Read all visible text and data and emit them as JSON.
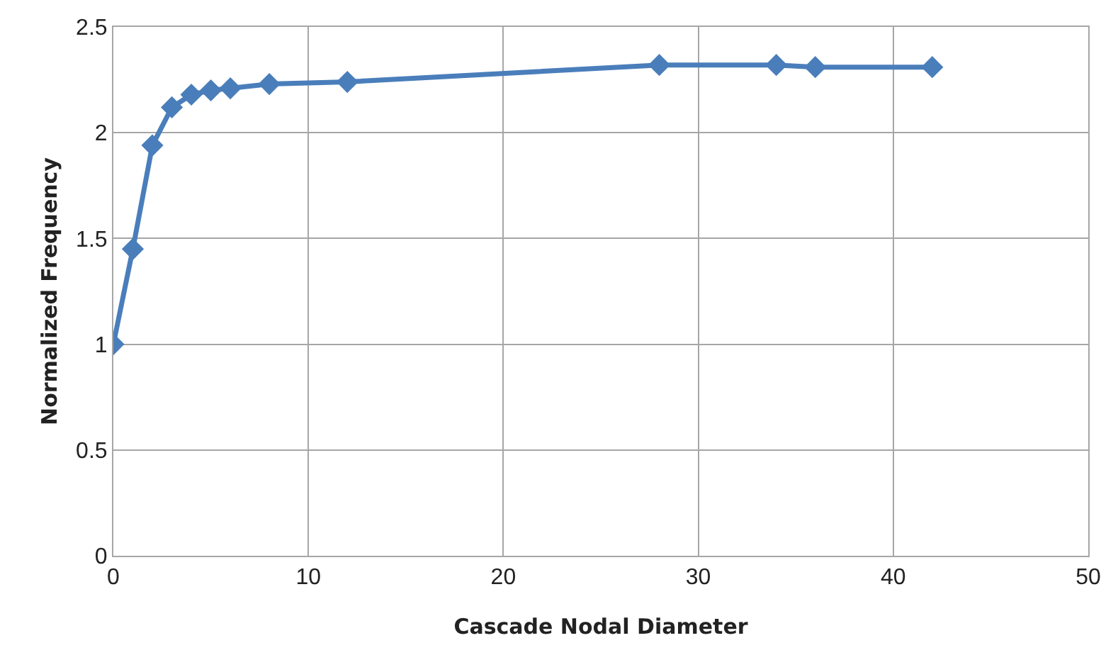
{
  "chart_data": {
    "type": "line",
    "xlabel": "Cascade Nodal Diameter",
    "ylabel": "Normalized Frequency",
    "x": [
      0,
      1,
      2,
      3,
      4,
      5,
      6,
      8,
      12,
      28,
      34,
      36,
      42
    ],
    "series": [
      {
        "color": "#4a7ebb",
        "values": [
          1.0,
          1.45,
          1.94,
          2.12,
          2.18,
          2.2,
          2.21,
          2.23,
          2.24,
          2.32,
          2.32,
          2.31,
          2.31
        ]
      }
    ],
    "xlim": [
      0,
      50
    ],
    "xticks": [
      0,
      10,
      20,
      30,
      40,
      50
    ],
    "ylim": [
      0,
      2.5
    ],
    "yticks": [
      0,
      0.5,
      1,
      1.5,
      2,
      2.5
    ],
    "grid": true,
    "marker": "diamond",
    "line_style": "solid"
  }
}
